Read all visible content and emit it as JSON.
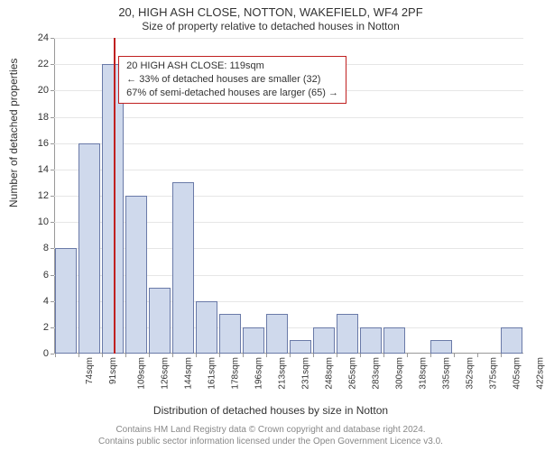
{
  "title": "20, HIGH ASH CLOSE, NOTTON, WAKEFIELD, WF4 2PF",
  "subtitle": "Size of property relative to detached houses in Notton",
  "ylabel": "Number of detached properties",
  "xlabel": "Distribution of detached houses by size in Notton",
  "footer_line1": "Contains HM Land Registry data © Crown copyright and database right 2024.",
  "footer_line2": "Contains public sector information licensed under the Open Government Licence v3.0.",
  "chart": {
    "type": "histogram",
    "ylim": [
      0,
      24
    ],
    "ytick_step": 2,
    "background_color": "#ffffff",
    "grid_color": "#e6e6e6",
    "axis_color": "#999999",
    "bar_fill": "#cfd9ec",
    "bar_stroke": "#6a7aa8",
    "bar_stroke_width": 1,
    "categories": [
      "74sqm",
      "91sqm",
      "109sqm",
      "126sqm",
      "144sqm",
      "161sqm",
      "178sqm",
      "196sqm",
      "213sqm",
      "231sqm",
      "248sqm",
      "265sqm",
      "283sqm",
      "300sqm",
      "318sqm",
      "335sqm",
      "352sqm",
      "375sqm",
      "405sqm",
      "422sqm"
    ],
    "values": [
      8,
      16,
      22,
      12,
      5,
      13,
      4,
      3,
      2,
      3,
      1,
      2,
      3,
      2,
      2,
      0,
      1,
      0,
      0,
      2
    ],
    "marker": {
      "bin_index": 2,
      "offset_within_bin": 0.55,
      "color": "#c02020"
    },
    "info_box": {
      "line1": "20 HIGH ASH CLOSE: 119sqm",
      "line2": "← 33% of detached houses are smaller (32)",
      "line3": "67% of semi-detached houses are larger (65) →",
      "border_color": "#c02020",
      "left_bin": 2,
      "top_value": 22.6
    },
    "tick_fontsize": 11,
    "label_fontsize": 12,
    "title_fontsize": 13
  }
}
